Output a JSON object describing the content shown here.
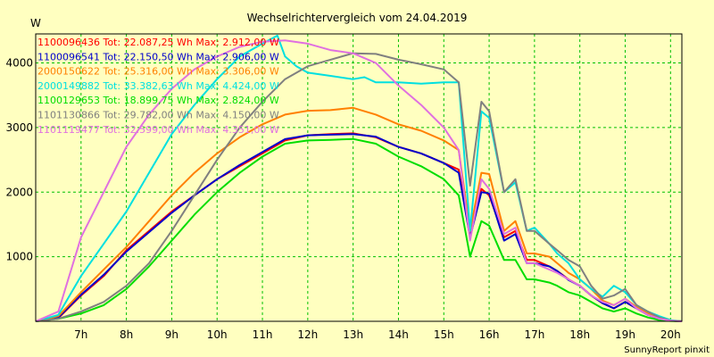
{
  "chart_data": {
    "type": "line",
    "title": "Wechselrichtervergleich vom 24.04.2019",
    "ylabel": "W",
    "footer": "SunnyReport pinxit",
    "xlim": [
      6.0,
      20.25
    ],
    "ylim": [
      0,
      4450
    ],
    "x_ticks": [
      {
        "value": 7,
        "label": "7h"
      },
      {
        "value": 8,
        "label": "8h"
      },
      {
        "value": 9,
        "label": "9h"
      },
      {
        "value": 10,
        "label": "10h"
      },
      {
        "value": 11,
        "label": "11h"
      },
      {
        "value": 12,
        "label": "12h"
      },
      {
        "value": 13,
        "label": "13h"
      },
      {
        "value": 14,
        "label": "14h"
      },
      {
        "value": 15,
        "label": "15h"
      },
      {
        "value": 16,
        "label": "16h"
      },
      {
        "value": 17,
        "label": "17h"
      },
      {
        "value": 18,
        "label": "18h"
      },
      {
        "value": 19,
        "label": "19h"
      },
      {
        "value": 20,
        "label": "20h"
      }
    ],
    "y_ticks": [
      {
        "value": 1000,
        "label": "1000"
      },
      {
        "value": 2000,
        "label": "2000"
      },
      {
        "value": 3000,
        "label": "3000"
      },
      {
        "value": 4000,
        "label": "4000"
      }
    ],
    "grid": true,
    "background": "#ffffc0",
    "plot_background": "#ffffc0",
    "grid_color": "#00c000",
    "legend_position": "top-left",
    "series": [
      {
        "name": "1100096436",
        "legend": "1100096436 Tot: 22.087,25 Wh Max: 2.912,00 W",
        "color": "#ff0000",
        "width": 2,
        "x": [
          6.0,
          6.5,
          7.0,
          7.5,
          8.0,
          8.5,
          9.0,
          9.5,
          10.0,
          10.5,
          11.0,
          11.5,
          12.0,
          12.5,
          13.0,
          13.5,
          14.0,
          14.5,
          15.0,
          15.33,
          15.58,
          15.83,
          16.0,
          16.33,
          16.58,
          16.83,
          17.0,
          17.33,
          17.5,
          17.75,
          18.0,
          18.25,
          18.5,
          18.75,
          19.0,
          19.25,
          19.5,
          19.75,
          20.0,
          20.25
        ],
        "y": [
          0,
          50,
          400,
          700,
          1100,
          1400,
          1700,
          1950,
          2200,
          2400,
          2600,
          2800,
          2880,
          2900,
          2910,
          2850,
          2700,
          2600,
          2450,
          2350,
          1350,
          2050,
          1950,
          1300,
          1400,
          950,
          950,
          850,
          780,
          650,
          550,
          400,
          280,
          200,
          300,
          200,
          100,
          40,
          10,
          0
        ]
      },
      {
        "name": "1100096541",
        "legend": "1100096541 Tot: 22.150,50 Wh Max: 2.906,00 W",
        "color": "#0000cc",
        "width": 2,
        "x": [
          6.0,
          6.5,
          7.0,
          7.5,
          8.0,
          8.5,
          9.0,
          9.5,
          10.0,
          10.5,
          11.0,
          11.5,
          12.0,
          12.5,
          13.0,
          13.5,
          14.0,
          14.5,
          15.0,
          15.33,
          15.58,
          15.83,
          16.0,
          16.33,
          16.58,
          16.83,
          17.0,
          17.33,
          17.5,
          17.75,
          18.0,
          18.25,
          18.5,
          18.75,
          19.0,
          19.25,
          19.5,
          19.75,
          20.0,
          20.25
        ],
        "y": [
          0,
          60,
          410,
          720,
          1080,
          1380,
          1680,
          1950,
          2200,
          2420,
          2620,
          2820,
          2880,
          2890,
          2900,
          2860,
          2700,
          2600,
          2450,
          2300,
          1300,
          2000,
          1980,
          1250,
          1350,
          900,
          900,
          850,
          780,
          640,
          550,
          400,
          280,
          200,
          300,
          200,
          100,
          40,
          10,
          0
        ]
      },
      {
        "name": "2000150622",
        "legend": "2000150622 Tot: 25.316,00 Wh Max: 3.306,00 W",
        "color": "#ff8000",
        "width": 2,
        "x": [
          6.0,
          6.5,
          7.0,
          7.5,
          8.0,
          8.5,
          9.0,
          9.5,
          10.0,
          10.5,
          11.0,
          11.5,
          12.0,
          12.5,
          13.0,
          13.5,
          14.0,
          14.5,
          15.0,
          15.33,
          15.58,
          15.83,
          16.0,
          16.33,
          16.58,
          16.83,
          17.0,
          17.33,
          17.5,
          17.75,
          18.0,
          18.25,
          18.5,
          18.75,
          19.0,
          19.25,
          19.5,
          19.75,
          20.0,
          20.25
        ],
        "y": [
          0,
          80,
          450,
          800,
          1150,
          1550,
          1950,
          2300,
          2600,
          2850,
          3050,
          3200,
          3260,
          3270,
          3306,
          3200,
          3050,
          2950,
          2800,
          2650,
          1400,
          2300,
          2280,
          1400,
          1550,
          1050,
          1050,
          1000,
          900,
          750,
          650,
          500,
          320,
          250,
          350,
          220,
          120,
          50,
          10,
          0
        ]
      },
      {
        "name": "2000149882",
        "legend": "2000149882 Tot: 33.382,63 Wh Max: 4.424,00 W",
        "color": "#00e0e0",
        "width": 2,
        "x": [
          6.0,
          6.5,
          7.0,
          7.5,
          8.0,
          8.5,
          9.0,
          9.5,
          10.0,
          10.5,
          11.0,
          11.33,
          11.5,
          11.75,
          12.0,
          12.5,
          13.0,
          13.25,
          13.5,
          14.0,
          14.5,
          15.0,
          15.33,
          15.58,
          15.83,
          16.0,
          16.33,
          16.58,
          16.83,
          17.0,
          17.33,
          17.5,
          17.75,
          18.0,
          18.25,
          18.5,
          18.75,
          19.0,
          19.25,
          19.5,
          19.75,
          20.0,
          20.25
        ],
        "y": [
          0,
          100,
          700,
          1200,
          1700,
          2300,
          2900,
          3350,
          3750,
          4100,
          4300,
          4424,
          4100,
          3950,
          3850,
          3800,
          3750,
          3780,
          3700,
          3700,
          3680,
          3700,
          3700,
          1400,
          3250,
          3150,
          2000,
          2150,
          1400,
          1450,
          1200,
          1050,
          900,
          650,
          500,
          380,
          550,
          450,
          250,
          150,
          80,
          20,
          0
        ]
      },
      {
        "name": "1100129653",
        "legend": "1100129653 Tot: 18.899,75 Wh Max: 2.824,00 W",
        "color": "#00dd00",
        "width": 2,
        "x": [
          6.0,
          6.5,
          7.0,
          7.5,
          8.0,
          8.5,
          9.0,
          9.5,
          10.0,
          10.5,
          11.0,
          11.5,
          12.0,
          12.5,
          13.0,
          13.5,
          14.0,
          14.5,
          15.0,
          15.33,
          15.58,
          15.83,
          16.0,
          16.33,
          16.58,
          16.83,
          17.0,
          17.33,
          17.5,
          17.75,
          18.0,
          18.25,
          18.5,
          18.75,
          19.0,
          19.25,
          19.5,
          19.75,
          20.0,
          20.25
        ],
        "y": [
          0,
          40,
          120,
          250,
          500,
          850,
          1250,
          1650,
          2000,
          2300,
          2550,
          2750,
          2800,
          2810,
          2824,
          2750,
          2550,
          2400,
          2200,
          1950,
          1000,
          1550,
          1480,
          950,
          950,
          650,
          650,
          600,
          550,
          450,
          400,
          300,
          200,
          150,
          200,
          120,
          60,
          20,
          5,
          0
        ]
      },
      {
        "name": "1101130866",
        "legend": "1101130866 Tot: 29.782,00 Wh Max: 4.150,00 W",
        "color": "#808080",
        "width": 2,
        "x": [
          6.0,
          6.5,
          7.0,
          7.5,
          8.0,
          8.5,
          9.0,
          9.5,
          10.0,
          10.5,
          11.0,
          11.5,
          12.0,
          12.5,
          13.0,
          13.5,
          14.0,
          14.5,
          15.0,
          15.33,
          15.58,
          15.83,
          16.0,
          16.33,
          16.58,
          16.83,
          17.0,
          17.33,
          17.5,
          17.75,
          18.0,
          18.25,
          18.5,
          18.75,
          19.0,
          19.25,
          19.5,
          19.75,
          20.0,
          20.25
        ],
        "y": [
          0,
          40,
          150,
          300,
          550,
          900,
          1400,
          1950,
          2500,
          3000,
          3400,
          3750,
          3950,
          4050,
          4150,
          4140,
          4050,
          3980,
          3900,
          3700,
          2100,
          3400,
          3250,
          2000,
          2200,
          1400,
          1400,
          1200,
          1100,
          950,
          850,
          550,
          350,
          400,
          500,
          250,
          150,
          60,
          10,
          0
        ]
      },
      {
        "name": "1101119477",
        "legend": "1101119477 Tot: 32.599,00 Wh Max: 4.351,00 W",
        "color": "#e070e0",
        "width": 2,
        "x": [
          6.0,
          6.5,
          7.0,
          7.5,
          8.0,
          8.5,
          9.0,
          9.5,
          10.0,
          10.5,
          11.0,
          11.5,
          12.0,
          12.5,
          13.0,
          13.5,
          14.0,
          14.5,
          15.0,
          15.33,
          15.58,
          15.83,
          16.0,
          16.33,
          16.58,
          16.83,
          17.0,
          17.33,
          17.5,
          17.75,
          18.0,
          18.25,
          18.5,
          18.75,
          19.0,
          19.25,
          19.5,
          19.75,
          20.0,
          20.25
        ],
        "y": [
          0,
          150,
          1300,
          2000,
          2700,
          3200,
          3600,
          3900,
          4100,
          4250,
          4330,
          4351,
          4300,
          4200,
          4150,
          4000,
          3650,
          3350,
          3000,
          2650,
          1250,
          2200,
          2050,
          1350,
          1450,
          900,
          900,
          800,
          750,
          650,
          550,
          400,
          300,
          250,
          350,
          200,
          100,
          40,
          10,
          0
        ]
      }
    ]
  }
}
